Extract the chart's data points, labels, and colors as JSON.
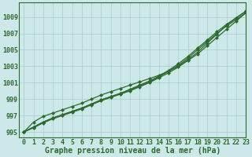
{
  "background_color": "#cce8e8",
  "plot_bg_color": "#cce8e8",
  "grid_color": "#aacccc",
  "line_color": "#2d6a2d",
  "title": "Graphe pression niveau de la mer (hPa)",
  "ylabel_ticks": [
    995,
    997,
    999,
    1001,
    1003,
    1005,
    1007,
    1009
  ],
  "xlim": [
    -0.5,
    23
  ],
  "ylim": [
    994.3,
    1010.8
  ],
  "xticks": [
    0,
    1,
    2,
    3,
    4,
    5,
    6,
    7,
    8,
    9,
    10,
    11,
    12,
    13,
    14,
    15,
    16,
    17,
    18,
    19,
    20,
    21,
    22,
    23
  ],
  "series": [
    [
      995.0,
      995.5,
      996.1,
      996.6,
      997.0,
      997.4,
      997.8,
      998.3,
      998.8,
      999.2,
      999.6,
      1000.0,
      1000.5,
      1001.0,
      1001.6,
      1002.2,
      1002.9,
      1003.7,
      1004.5,
      1005.5,
      1006.5,
      1007.5,
      1008.5,
      1009.5
    ],
    [
      995.0,
      995.6,
      996.2,
      996.7,
      997.1,
      997.5,
      997.9,
      998.4,
      998.9,
      999.3,
      999.7,
      1000.1,
      1000.6,
      1001.1,
      1001.7,
      1002.4,
      1003.1,
      1004.0,
      1005.0,
      1006.0,
      1007.0,
      1007.9,
      1008.7,
      1009.5
    ],
    [
      995.0,
      995.6,
      996.2,
      996.7,
      997.1,
      997.5,
      997.9,
      998.4,
      998.9,
      999.3,
      999.7,
      1000.2,
      1000.7,
      1001.2,
      1001.8,
      1002.5,
      1003.3,
      1004.2,
      1005.2,
      1006.2,
      1007.2,
      1008.1,
      1008.9,
      1009.7
    ],
    [
      995.0,
      996.2,
      996.9,
      997.3,
      997.7,
      998.1,
      998.5,
      999.0,
      999.5,
      999.9,
      1000.3,
      1000.7,
      1001.1,
      1001.5,
      1001.9,
      1002.4,
      1003.0,
      1003.8,
      1004.7,
      1005.8,
      1006.9,
      1008.0,
      1008.9,
      1009.7
    ]
  ],
  "title_fontsize": 7,
  "tick_fontsize": 6,
  "figsize": [
    3.2,
    2.0
  ],
  "dpi": 100
}
